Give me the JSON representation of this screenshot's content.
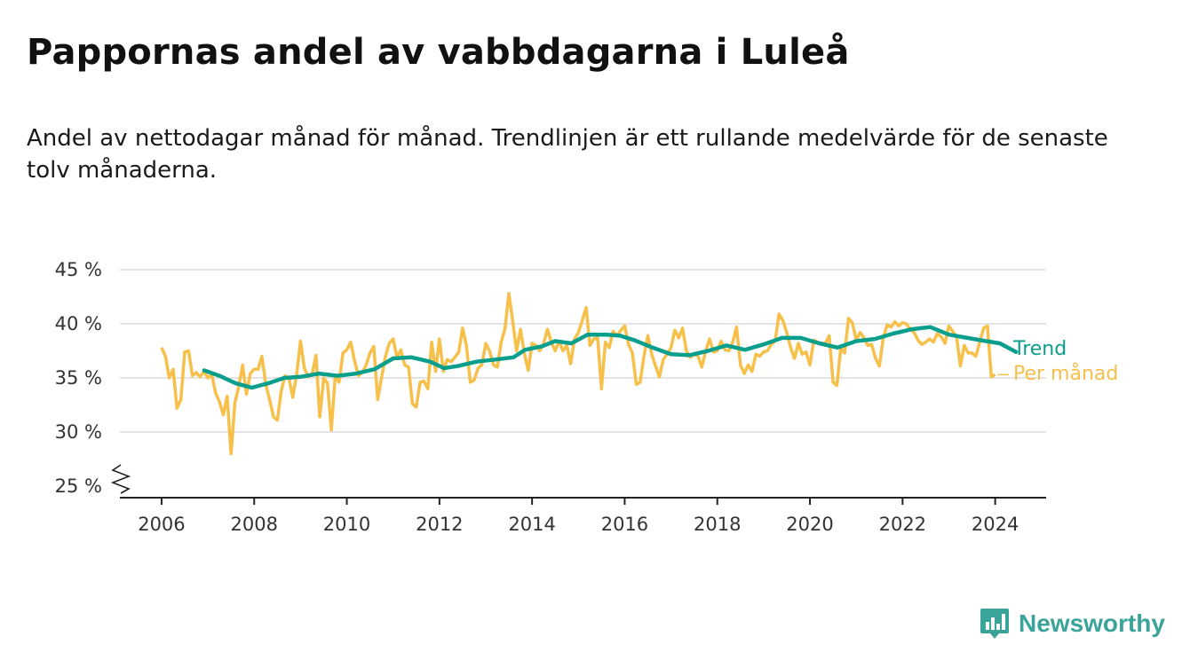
{
  "title": "Pappornas andel av vabbdagarna i Luleå",
  "subtitle": "Andel av nettodagar månad för månad. Trendlinjen är ett rullande medelvärde för de senaste tolv månaderna.",
  "brand": {
    "name": "Newsworthy",
    "icon": "bar-chart-icon",
    "color": "#3aa39a"
  },
  "chart_data": {
    "type": "line",
    "x_ticks": [
      "2006",
      "2008",
      "2010",
      "2012",
      "2014",
      "2016",
      "2018",
      "2020",
      "2022",
      "2024"
    ],
    "y_ticks": [
      "25 %",
      "30 %",
      "35 %",
      "40 %",
      "45 %"
    ],
    "ylim": [
      25,
      45
    ],
    "xlim": [
      2005.1,
      2025.1
    ],
    "axis_break": true,
    "grid": "horizontal",
    "series": [
      {
        "name": "Per månad",
        "color": "#f7c04a",
        "x_start": 2006.0,
        "x_step": 0.08333,
        "values": [
          37.8,
          37.0,
          35.0,
          35.8,
          32.2,
          33.0,
          37.4,
          37.5,
          35.2,
          35.5,
          35.1,
          35.6,
          35.0,
          35.3,
          33.6,
          32.8,
          31.6,
          33.3,
          28.0,
          32.7,
          34.2,
          36.2,
          33.5,
          35.4,
          35.8,
          35.8,
          37.0,
          34.4,
          33.0,
          31.4,
          31.1,
          33.8,
          35.2,
          35.0,
          33.2,
          35.3,
          38.4,
          35.9,
          35.1,
          35.3,
          37.1,
          31.4,
          35.0,
          34.5,
          30.2,
          35.2,
          34.6,
          37.3,
          37.6,
          38.3,
          36.6,
          35.2,
          35.5,
          36.2,
          37.3,
          37.9,
          33.0,
          35.0,
          37.0,
          38.2,
          38.6,
          36.9,
          37.6,
          36.2,
          36.0,
          32.6,
          32.3,
          34.6,
          34.7,
          34.0,
          38.3,
          35.6,
          38.6,
          35.6,
          36.7,
          36.5,
          36.9,
          37.4,
          39.6,
          38.0,
          34.6,
          34.8,
          35.9,
          36.2,
          38.2,
          37.5,
          36.2,
          36.0,
          38.3,
          39.6,
          42.8,
          40.2,
          37.5,
          39.5,
          37.3,
          35.7,
          38.2,
          38.0,
          37.5,
          38.2,
          39.5,
          38.3,
          37.5,
          38.4,
          37.5,
          38.0,
          36.3,
          38.6,
          39.2,
          40.3,
          41.5,
          38.0,
          38.6,
          38.7,
          34.0,
          38.3,
          37.8,
          39.3,
          38.9,
          39.4,
          39.8,
          38.1,
          37.3,
          34.4,
          34.6,
          37.0,
          38.9,
          37.2,
          36.1,
          35.1,
          36.7,
          37.2,
          37.8,
          39.4,
          38.7,
          39.6,
          37.5,
          36.9,
          37.2,
          37.0,
          36.0,
          37.5,
          38.6,
          37.4,
          37.5,
          38.4,
          37.6,
          37.5,
          38.3,
          39.7,
          36.2,
          35.4,
          36.2,
          35.6,
          37.2,
          37.0,
          37.4,
          37.5,
          38.1,
          38.4,
          40.9,
          40.3,
          39.2,
          37.8,
          36.8,
          38.2,
          37.2,
          37.4,
          36.2,
          38.5,
          38.3,
          38.2,
          38.2,
          38.9,
          34.6,
          34.3,
          37.8,
          37.3,
          40.5,
          40.1,
          38.5,
          39.2,
          38.7,
          38.0,
          38.1,
          36.8,
          36.1,
          38.7,
          39.9,
          39.7,
          40.2,
          39.8,
          40.1,
          40.0,
          39.5,
          39.2,
          38.5,
          38.1,
          38.3,
          38.6,
          38.3,
          39.1,
          38.8,
          38.2,
          39.8,
          39.3,
          38.8,
          36.1,
          38.0,
          37.3,
          37.3,
          37.0,
          38.3,
          39.6,
          39.8,
          35.1,
          35.3
        ]
      },
      {
        "name": "Trend",
        "color": "#0a9e8c",
        "points": [
          [
            2006.92,
            35.7
          ],
          [
            2007.25,
            35.2
          ],
          [
            2007.6,
            34.5
          ],
          [
            2007.95,
            34.1
          ],
          [
            2008.3,
            34.5
          ],
          [
            2008.65,
            35.0
          ],
          [
            2009.0,
            35.1
          ],
          [
            2009.4,
            35.4
          ],
          [
            2009.8,
            35.2
          ],
          [
            2010.2,
            35.4
          ],
          [
            2010.6,
            35.8
          ],
          [
            2011.0,
            36.8
          ],
          [
            2011.4,
            36.9
          ],
          [
            2011.8,
            36.5
          ],
          [
            2012.1,
            35.9
          ],
          [
            2012.4,
            36.1
          ],
          [
            2012.8,
            36.5
          ],
          [
            2013.2,
            36.7
          ],
          [
            2013.6,
            36.9
          ],
          [
            2013.85,
            37.6
          ],
          [
            2014.2,
            37.9
          ],
          [
            2014.5,
            38.4
          ],
          [
            2014.85,
            38.2
          ],
          [
            2015.2,
            39.0
          ],
          [
            2015.6,
            39.0
          ],
          [
            2015.9,
            38.9
          ],
          [
            2016.2,
            38.5
          ],
          [
            2016.6,
            37.8
          ],
          [
            2017.0,
            37.2
          ],
          [
            2017.4,
            37.1
          ],
          [
            2017.8,
            37.5
          ],
          [
            2018.2,
            38.0
          ],
          [
            2018.6,
            37.6
          ],
          [
            2019.0,
            38.1
          ],
          [
            2019.4,
            38.7
          ],
          [
            2019.8,
            38.7
          ],
          [
            2020.2,
            38.2
          ],
          [
            2020.6,
            37.8
          ],
          [
            2021.0,
            38.4
          ],
          [
            2021.4,
            38.6
          ],
          [
            2021.8,
            39.1
          ],
          [
            2022.2,
            39.5
          ],
          [
            2022.6,
            39.7
          ],
          [
            2023.0,
            39.0
          ],
          [
            2023.4,
            38.7
          ],
          [
            2023.8,
            38.4
          ],
          [
            2024.1,
            38.2
          ],
          [
            2024.45,
            37.4
          ]
        ]
      }
    ]
  }
}
